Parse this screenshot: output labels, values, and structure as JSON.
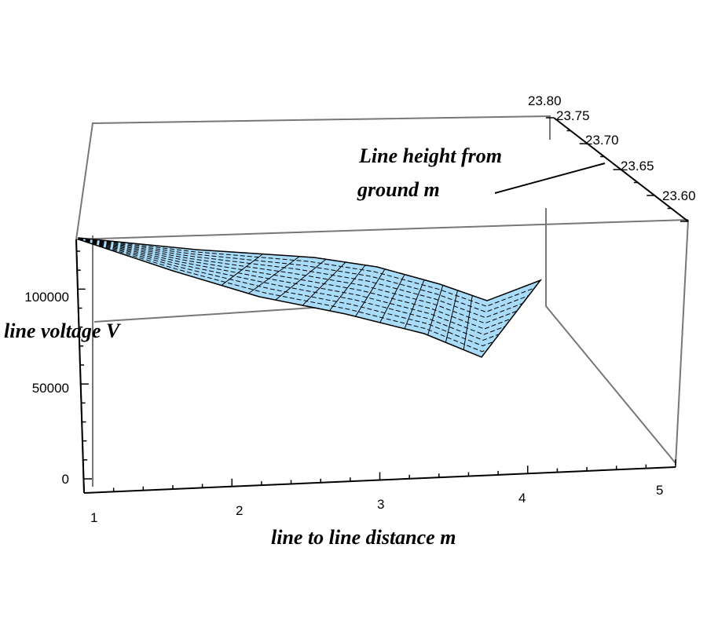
{
  "chart_data": {
    "type": "surface",
    "title": "",
    "xlabel": "line to line  distance  m",
    "ylabel": "Line  height from ground  m",
    "ylabel_lines": [
      "Line  height from",
      "ground  m"
    ],
    "zlabel": "line voltage  V",
    "x_ticks": [
      "1",
      "2",
      "3",
      "4",
      "5"
    ],
    "y_ticks": [
      "23.80",
      "23.75",
      "23.70",
      "23.65",
      "23.60"
    ],
    "z_ticks": [
      "0",
      "50000",
      "100000"
    ],
    "xlim": [
      1,
      5
    ],
    "ylim": [
      23.6,
      23.8
    ],
    "surface_color": "#a9dcf9",
    "mesh_color": "#000000"
  }
}
